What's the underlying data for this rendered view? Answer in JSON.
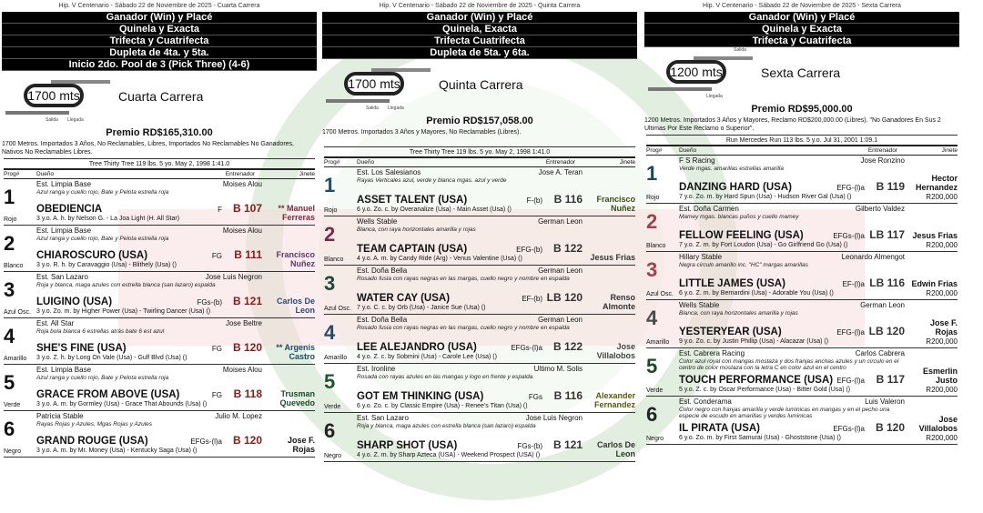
{
  "watermark": {
    "text": "HIPODROMO V CENTENARIO",
    "overlay": "PRENSA"
  },
  "columns_header": {
    "prog": "Prog#",
    "owner": "Dueño",
    "trainer": "Entrenador",
    "jockey": "Jinete"
  },
  "races": [
    {
      "header": "Hip. V Centenario - Sábado 22 de Noviembre de 2025 - Cuarta Carrera",
      "bets": [
        "Ganador (Win) y Placé",
        "Quinela y Exacta",
        "Trifecta y Cuatrifecta",
        "Dupleta de 4ta. y 5ta.",
        "Inicio 2do. Pool de 3 (Pick Three) (4-6)"
      ],
      "distance": "1700 mts",
      "name": "Cuarta Carrera",
      "salida": "Salida",
      "llegada": "Llegada",
      "purse": "Premio RD$165,310.00",
      "conditions": "1700 Metros. Importados 3 Años, No Reclamables, Libres, Importados No Reclamables No Ganadores, Nativos No Reclamables Libres.",
      "record": "Tree Thirty Tree  119 lbs.  5 yo.  May 2, 1998  1:41.0",
      "entries": [
        {
          "num": "1",
          "color": "Rojo",
          "owner": "Est. Limpia Base",
          "trainer": "Moises Alou",
          "silks": "Azul ranga y cuello rojo, Bate y Pelota estrella roja",
          "horse": "OBEDIENCIA",
          "med": "F",
          "weight": "B 107",
          "jockey": "** Manuel Ferreras",
          "pedigree": "3 y.o. A. h. by Nelson G. - La Joa Light (H. All Star)",
          "numc": "#111",
          "jc": "#7a2a3a"
        },
        {
          "num": "2",
          "color": "Blanco",
          "owner": "Est. Limpia Base",
          "trainer": "Moises Alou",
          "silks": "Azul ranga y cuello rojo, Bate y Pelota estrella roja",
          "horse": "CHIAROSCURO (USA)",
          "med": "FG",
          "weight": "B 111",
          "jockey": "Francisco Nuñez",
          "pedigree": "3 y.o. R. h. by Caravaggio (Usa) - Blithely (Usa) ()",
          "numc": "#111",
          "jc": "#5a3a6a"
        },
        {
          "num": "3",
          "color": "Azul Osc.",
          "owner": "Est. San Lazaro",
          "trainer": "Jose Luis Negron",
          "silks": "Roja y blanca, maga azules con estrella blanca (san lazaro) espalda",
          "horse": "LUIGINO (USA)",
          "med": "FGs-(b)",
          "weight": "B 121",
          "jockey": "Carlos De Leon",
          "pedigree": "3 y.o. Zo. m. by Higher Power (Usa) - Twirling Dancer (Usa) ()",
          "numc": "#111",
          "jc": "#2a4a7a"
        },
        {
          "num": "4",
          "color": "Amarillo",
          "owner": "Est. All Star",
          "trainer": "Jose Beltre",
          "silks": "Roja bola blanca 6 estrellas atrás bate 6 est azul",
          "horse": "SHE'S FINE (USA)",
          "med": "FG",
          "weight": "B 120",
          "jockey": "** Argenis Castro",
          "pedigree": "3 y.o. Z. h. by Long On Vale (Usa) - Gulf Blvd (Usa) ()",
          "numc": "#111",
          "jc": "#1a4a6a"
        },
        {
          "num": "5",
          "color": "Verde",
          "owner": "Est. Limpia Base",
          "trainer": "Moises Alou",
          "silks": "Azul ranga y cuello rojo, Bate y Pelota estrella roja",
          "horse": "GRACE FROM ABOVE (USA)",
          "med": "FG",
          "weight": "B 118",
          "jockey": "Trusman Quevedo",
          "pedigree": "3 y.o. A. m. by Gormley (Usa) - Grace That Abounds (Usa) ()",
          "numc": "#111",
          "jc": "#1a4a2a"
        },
        {
          "num": "6",
          "color": "Negro",
          "owner": "Patricia Stable",
          "trainer": "Julio M. Lopez",
          "silks": "Rayas Rojas y Azules, Mgas Rojas y Azules",
          "horse": "GRAND ROUGE (USA)",
          "med": "EFGs-(l)a",
          "weight": "B 120",
          "jockey": "Jose F. Rojas",
          "pedigree": "3 y.o. A. m. by Mr. Money (Usa) - Kentucky Saga (Usa) ()",
          "numc": "#111",
          "jc": "#111"
        }
      ]
    },
    {
      "header": "Hip. V Centenario - Sábado 22 de Noviembre de 2025 - Quinta Carrera",
      "bets": [
        "Ganador (Win) y Placé",
        "Quinela, Exacta",
        "Trifecta Cuatrifecta",
        "Dupleta de 5ta. y 6ta."
      ],
      "distance": "1700 mts",
      "name": "Quinta Carrera",
      "salida": "Salida",
      "llegada": "Llegada",
      "purse": "Premio RD$157,058.00",
      "conditions": "1700 Metros. Importados 3 Años y Mayores, No Reclamables (Libres).",
      "record": "Tree Thirty Tree  119 lbs.  5 yo.  May 2, 1998  1:41.0",
      "entries": [
        {
          "num": "1",
          "color": "Rojo",
          "owner": "Est. Los Salesianos",
          "trainer": "Jose A. Teran",
          "silks": "Rayas Verticales azul, verde y blanca mgas. azul y verde",
          "horse": "ASSET TALENT (USA)",
          "med": "F-(b)",
          "weight": "B 116",
          "jockey": "Francisco Nuñez",
          "pedigree": "6 y.o. Zo. c. by Overanalize (Usa) - Main Asset (Usa) ()",
          "numc": "#1a4a7a",
          "jc": "#3a4a1a"
        },
        {
          "num": "2",
          "color": "Blanco",
          "owner": "Wells Stable",
          "trainer": "German Leon",
          "silks": "Blanca, con raya horizontales amarilla y rojas",
          "horse": "TEAM CAPTAIN (USA)",
          "med": "EFG-(b)",
          "weight": "B 122",
          "jockey": "Jesus Frias",
          "pedigree": "4 y.o. A. m. by Candy Ride (Arg) - Venus Valentine (Usa) ()",
          "numc": "#7a2a4a",
          "jc": "#333"
        },
        {
          "num": "3",
          "color": "Azul Osc.",
          "owner": "Est. Doña Bella",
          "trainer": "German Leon",
          "silks": "Rosado fusia con rayas negras en las margas, cuello negro y nombre en espalda",
          "horse": "WATER CAY (USA)",
          "med": "EF-(b)",
          "weight": "LB 120",
          "jockey": "Renso Almonte",
          "pedigree": "7 y.o. C. c. by Orb (Usa) - Janice Sue (Usa) ()",
          "numc": "#1a4a3a",
          "jc": "#333"
        },
        {
          "num": "4",
          "color": "Amarillo",
          "owner": "Est. Doña Bella",
          "trainer": "German Leon",
          "silks": "Rosado fusia con rayas negras en las margas, cuello negro y nombre en espalda",
          "horse": "LEE ALEJANDRO (USA)",
          "med": "EFGs-(l)a",
          "weight": "B 122",
          "jockey": "Jose Villalobos",
          "pedigree": "4 y.o. Z. c. by Sobmini (Usa) - Carole Lee (Usa) ()",
          "numc": "#2a4a6a",
          "jc": "#444"
        },
        {
          "num": "5",
          "color": "Verde",
          "owner": "Est. Ironline",
          "trainer": "Ultimo M. Solis",
          "silks": "Rosada con rayas azules en las mangas y logo en frente y espalda",
          "horse": "GOT EM THINKING (USA)",
          "med": "FGs",
          "weight": "B 116",
          "jockey": "Alexander Fernandez",
          "pedigree": "6 y.o. Zo. c. by Classic Empire (Usa) - Renee's Titan (Usa) ()",
          "numc": "#1a5a2a",
          "jc": "#5a5a0a"
        },
        {
          "num": "6",
          "color": "Negro",
          "owner": "Est. San Lazaro",
          "trainer": "Jose Luis Negron",
          "silks": "Roja y blanca, maga azules con estrella blanca (san lazaro) espalda",
          "horse": "SHARP SHOT (USA)",
          "med": "FGs-(b)",
          "weight": "B 121",
          "jockey": "Carlos De Leon",
          "pedigree": "4 y.o. Z. m. by Sharp Azteca (USA) - Weekend Prospect (USA) ()",
          "numc": "#222",
          "jc": "#333"
        }
      ]
    },
    {
      "header": "Hip. V Centenario - Sábado 22 de Noviembre de 2025 - Sexta Carrera",
      "bets": [
        "Ganador (Win) y Placé",
        "Quinela y Exacta",
        "Trifecta y Cuatrifecta"
      ],
      "distance": "1200 mts",
      "name": "Sexta Carrera",
      "salida": "Salida",
      "llegada": "Llegada",
      "purse": "Premio RD$95,000.00",
      "conditions": "1200 Metros. Importados 3 Años y Mayores, Reclamo RD$200,000.00 (Libres). \"No Ganadores En Sus 2 Ultimas Por Este Reclamo o Superior\".",
      "record": "Run Mercedes Run  113 lbs.  5 y.o.  Jul 31, 2001  1:09.1",
      "entries": [
        {
          "num": "1",
          "color": "Rojo",
          "owner": "F S Racing",
          "trainer": "Jose Ronzino",
          "silks": "Verde mgas. amarillas estrellas amarilla",
          "horse": "DANZING HARD (USA)",
          "med": "EFG-(l)a",
          "weight": "B 119",
          "jockey": "Hector Hernandez",
          "pedigree": "7 y.o. Zo. m. by Hard Spun (Usa) - Hudson River Gal (Usa) ()",
          "claim": "R200,000",
          "numc": "#1a4a5a",
          "jc": "#111"
        },
        {
          "num": "2",
          "color": "Blanco",
          "owner": "Est. Doña Carmen",
          "trainer": "Gilberto Valdez",
          "silks": "Mamey mgas. blancas puños y cuello mamey",
          "horse": "FELLOW FEELING (USA)",
          "med": "EFGs-(l)a",
          "weight": "LB 117",
          "jockey": "Jesus Frias",
          "pedigree": "7 y.o. Z. m. by Fort Loudon (Usa) - Go Girlfriend Go (Usa) ()",
          "claim": "R200,000",
          "numc": "#a04050",
          "jc": "#111"
        },
        {
          "num": "3",
          "color": "Azul Osc.",
          "owner": "Hillary Stable",
          "trainer": "Leonardo Almengot",
          "silks": "Negra circulo amarillo inc. \"HC\" margas amarillas",
          "horse": "LITTLE JAMES (USA)",
          "med": "EF-(l)a",
          "weight": "LB 116",
          "jockey": "Edwin Frias",
          "pedigree": "6 y.o. Z. m. by Bernardini (Usa) - Adorable You (Usa) ()",
          "claim": "R200,000",
          "numc": "#a04050",
          "jc": "#111"
        },
        {
          "num": "4",
          "color": "Amarillo",
          "owner": "Wells Stable",
          "trainer": "German Leon",
          "silks": "Blanca, con raya horizontales amarilla y rojas",
          "horse": "YESTERYEAR (USA)",
          "med": "EFG-(l)a",
          "weight": "LB 120",
          "jockey": "Jose F. Rojas",
          "pedigree": "9 y.o. Zo. c. by Justin Phillip (Usa) - Alacazar (Usa) ()",
          "claim": "R200,000",
          "numc": "#4a4a4a",
          "jc": "#111"
        },
        {
          "num": "5",
          "color": "Verde",
          "owner": "Est. Cabrera Racing",
          "trainer": "Carlos Cabrera",
          "silks": "Color azul royal con mangas mostaza y dos franjas anchas azules y un circulo en el centro de color mostaza con la letra C en color azul en el centro",
          "horse": "TOUCH PERFORMANCE (USA)",
          "med": "EFG-(l)a",
          "weight": "B 117",
          "jockey": "Esmerlin Justo",
          "pedigree": "5 y.o. Z. c. by Oscar Performance (Usa) - Bitter Gold (Usa) ()",
          "claim": "R200,000",
          "numc": "#1a4a2a",
          "jc": "#111"
        },
        {
          "num": "6",
          "color": "Negro",
          "owner": "Est. Conderama",
          "trainer": "Luis Valeron",
          "silks": "Color negro con franjas amarilla y verde luminicas en mangas y en el pecho una especie de escudo en amarillas y verdes luminicas",
          "horse": "IL PIRATA (USA)",
          "med": "EFGs-(l)a",
          "weight": "B 120",
          "jockey": "Jose Villalobos",
          "pedigree": "6 y.o. Zo. m. by First Samurai (Usa) - Ghoststone (Usa) ()",
          "claim": "R200,000",
          "numc": "#222",
          "jc": "#111"
        }
      ]
    }
  ]
}
